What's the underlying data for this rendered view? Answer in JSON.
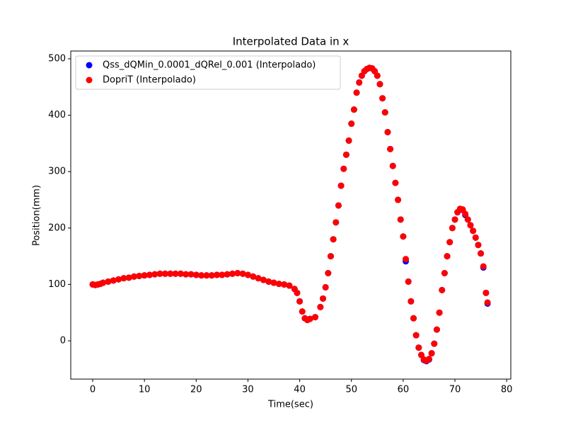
{
  "chart_data": {
    "type": "scatter",
    "title": "Interpolated Data in x",
    "x_label": "Time(sec)",
    "y_label": "Position(mm)",
    "x": [
      0,
      0.5,
      1,
      1.5,
      2,
      3,
      4,
      5,
      6,
      7,
      8,
      9,
      10,
      11,
      12,
      13,
      14,
      15,
      16,
      17,
      18,
      19,
      20,
      21,
      22,
      23,
      24,
      25,
      26,
      27,
      28,
      29,
      30,
      31,
      32,
      33,
      34,
      35,
      36,
      37,
      38,
      39,
      39.5,
      40,
      40.5,
      41,
      41.5,
      42,
      43,
      44,
      44.5,
      45,
      45.5,
      46,
      46.5,
      47,
      47.5,
      48,
      48.5,
      49,
      49.5,
      50,
      50.5,
      51,
      51.5,
      52,
      52.5,
      53,
      53.5,
      54,
      54.5,
      55,
      55.5,
      56,
      56.5,
      57,
      57.5,
      58,
      58.5,
      59,
      59.5,
      60,
      60.5,
      61,
      61.5,
      62,
      62.5,
      63,
      63.5,
      64,
      64.5,
      65,
      65.5,
      66,
      66.5,
      67,
      67.5,
      68,
      68.5,
      69,
      69.5,
      70,
      70.5,
      71,
      71.5,
      72,
      72.5,
      73,
      73.5,
      74,
      74.5,
      75,
      75.5,
      76,
      76.3
    ],
    "series": [
      {
        "name": "Qss_dQMin_0.0001_dQRel_0.001 (Interpolado)",
        "color": "#0000ff",
        "values": [
          100,
          99,
          100,
          101,
          103,
          105,
          107,
          109,
          111,
          112,
          114,
          115,
          116,
          117,
          118,
          119,
          119,
          119,
          119,
          119,
          118,
          118,
          117,
          116,
          116,
          116,
          117,
          117,
          118,
          119,
          120,
          119,
          117,
          114,
          111,
          108,
          105,
          103,
          101,
          100,
          98,
          92,
          85,
          70,
          52,
          40,
          37,
          39,
          42,
          60,
          75,
          95,
          120,
          150,
          180,
          210,
          240,
          275,
          305,
          330,
          355,
          385,
          410,
          440,
          458,
          470,
          478,
          482,
          484,
          483,
          478,
          470,
          455,
          430,
          405,
          370,
          340,
          310,
          280,
          250,
          215,
          185,
          141,
          105,
          70,
          40,
          10,
          -12,
          -25,
          -34,
          -36,
          -33,
          -22,
          -5,
          20,
          50,
          90,
          120,
          150,
          175,
          200,
          215,
          228,
          234,
          232,
          223,
          215,
          205,
          195,
          183,
          170,
          155,
          130,
          85,
          66
        ]
      },
      {
        "name": "DopriT (Interpolado)",
        "color": "#ff0000",
        "values": [
          100,
          99,
          100,
          101,
          103,
          105,
          107,
          109,
          111,
          112,
          114,
          115,
          116,
          117,
          118,
          119,
          119,
          119,
          119,
          119,
          118,
          118,
          117,
          116,
          116,
          116,
          117,
          117,
          118,
          119,
          120,
          119,
          117,
          114,
          111,
          108,
          105,
          103,
          101,
          100,
          98,
          92,
          85,
          70,
          52,
          40,
          37,
          39,
          42,
          60,
          75,
          95,
          120,
          150,
          180,
          210,
          240,
          275,
          305,
          330,
          355,
          385,
          410,
          440,
          458,
          470,
          478,
          482,
          484,
          483,
          478,
          470,
          455,
          430,
          405,
          370,
          340,
          310,
          280,
          250,
          215,
          185,
          145,
          105,
          70,
          40,
          10,
          -12,
          -25,
          -33,
          -35,
          -32,
          -22,
          -5,
          20,
          50,
          90,
          120,
          150,
          175,
          200,
          215,
          228,
          234,
          233,
          225,
          215,
          205,
          195,
          183,
          170,
          155,
          132,
          85,
          68
        ]
      }
    ],
    "xlim": [
      -4.24,
      80.8
    ],
    "ylim": [
      -67.8,
      513.8
    ],
    "xticks": [
      0,
      10,
      20,
      30,
      40,
      50,
      60,
      70,
      80
    ],
    "yticks": [
      0,
      100,
      200,
      300,
      400,
      500
    ],
    "legend": "upper left"
  }
}
